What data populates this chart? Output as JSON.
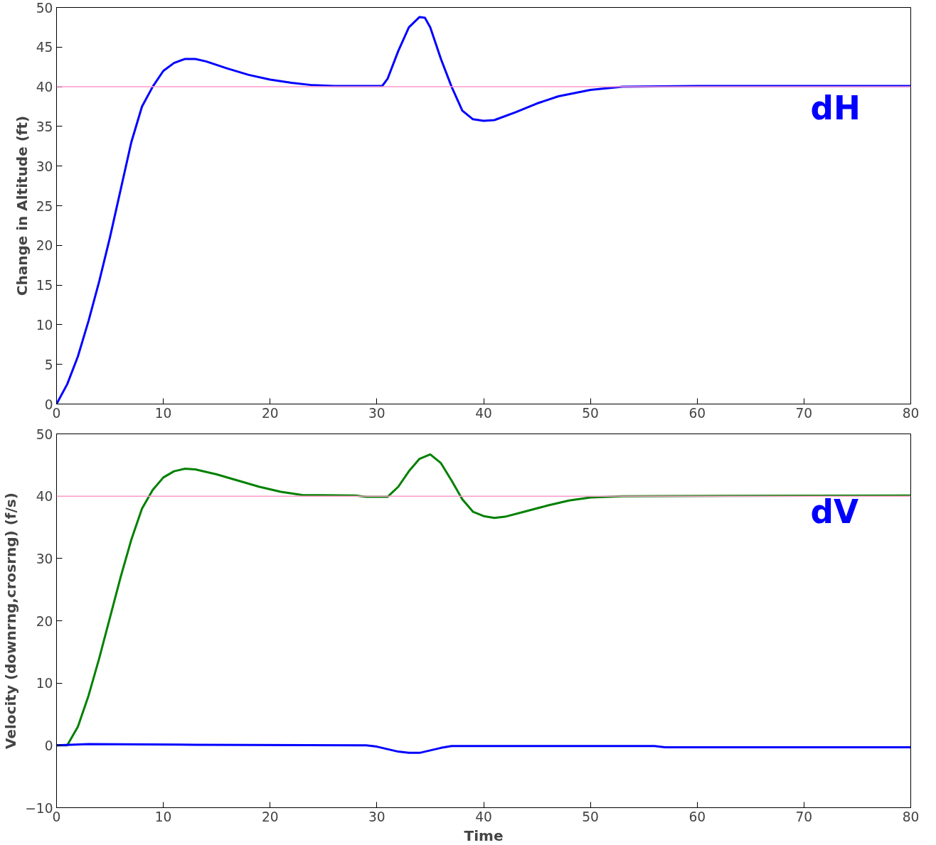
{
  "chart_data": [
    {
      "type": "line",
      "ylabel": "Change in Altitude (ft)",
      "xlim": [
        0,
        80
      ],
      "ylim": [
        0,
        50
      ],
      "xticks": [
        0,
        10,
        20,
        30,
        40,
        50,
        60,
        70,
        80
      ],
      "yticks": [
        0,
        5,
        10,
        15,
        20,
        25,
        30,
        35,
        40,
        45,
        50
      ],
      "ref_lines": [
        {
          "axis": "y",
          "value": 40,
          "label": null,
          "color": "#ff99cc"
        }
      ],
      "annotations": [
        "dH"
      ],
      "series": [
        {
          "color": "#0000ff",
          "x": [
            0,
            1,
            2,
            3,
            4,
            5,
            6,
            7,
            8,
            9,
            10,
            11,
            12,
            13,
            14,
            16,
            18,
            20,
            22,
            24,
            26,
            30.5,
            31,
            32,
            33,
            34,
            34.5,
            35,
            36,
            37,
            38,
            39,
            40,
            41,
            43,
            45,
            47,
            50,
            53,
            60,
            80
          ],
          "values": [
            0,
            2.5,
            6,
            10.5,
            15.5,
            21,
            27,
            33,
            37.5,
            40,
            42,
            43,
            43.5,
            43.5,
            43.2,
            42.3,
            41.5,
            40.9,
            40.5,
            40.2,
            40.1,
            40.1,
            41,
            44.5,
            47.5,
            48.8,
            48.7,
            47.5,
            43.5,
            40,
            37,
            35.9,
            35.7,
            35.8,
            36.8,
            37.9,
            38.8,
            39.6,
            40,
            40.1,
            40.1
          ]
        }
      ]
    },
    {
      "type": "line",
      "xlabel": "Time",
      "ylabel": "Velocity (downrng,crosrng) (f/s)",
      "xlim": [
        0,
        80
      ],
      "ylim": [
        -10,
        50
      ],
      "xticks": [
        0,
        10,
        20,
        30,
        40,
        50,
        60,
        70,
        80
      ],
      "yticks": [
        -10,
        0,
        10,
        20,
        30,
        40,
        50
      ],
      "ref_lines": [
        {
          "axis": "y",
          "value": 40,
          "label": null,
          "color": "#ff99cc"
        }
      ],
      "annotations": [
        "dV"
      ],
      "series": [
        {
          "color": "#008000",
          "x": [
            0,
            1,
            2,
            3,
            4,
            5,
            6,
            7,
            8,
            9,
            10,
            11,
            12,
            13,
            15,
            17,
            19,
            21,
            23,
            28,
            29,
            31,
            32,
            33,
            34,
            35,
            36,
            37,
            38,
            39,
            40,
            41,
            42,
            44,
            46,
            48,
            50,
            53,
            80
          ],
          "values": [
            0,
            0,
            3,
            8,
            14,
            20.5,
            27,
            33,
            38,
            41,
            43,
            44,
            44.4,
            44.3,
            43.5,
            42.5,
            41.5,
            40.7,
            40.2,
            40.1,
            39.9,
            39.9,
            41.5,
            44,
            46,
            46.7,
            45.3,
            42.5,
            39.5,
            37.5,
            36.8,
            36.5,
            36.7,
            37.6,
            38.5,
            39.3,
            39.8,
            40,
            40.1
          ]
        },
        {
          "color": "#0000ff",
          "x": [
            0,
            3,
            13,
            29,
            30,
            31,
            32,
            33,
            34,
            35,
            36,
            37,
            40,
            56,
            57,
            80
          ],
          "values": [
            0,
            0.2,
            0.1,
            0,
            -0.2,
            -0.6,
            -1,
            -1.2,
            -1.2,
            -0.8,
            -0.4,
            -0.1,
            -0.1,
            -0.1,
            -0.3,
            -0.3
          ]
        }
      ]
    }
  ]
}
